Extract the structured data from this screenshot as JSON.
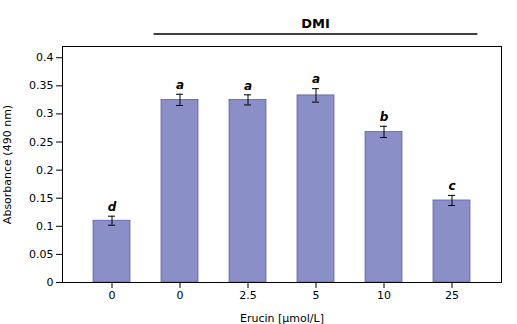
{
  "chart_data": {
    "type": "bar",
    "categories": [
      "0",
      "0",
      "2.5",
      "5",
      "10",
      "25"
    ],
    "values": [
      0.11,
      0.325,
      0.325,
      0.333,
      0.268,
      0.146
    ],
    "errors": [
      0.008,
      0.01,
      0.009,
      0.012,
      0.01,
      0.009
    ],
    "letters": [
      "d",
      "a",
      "a",
      "a",
      "b",
      "c"
    ],
    "color": "#8B8FC8",
    "xlabel": "Erucin [μmol/L]",
    "ylabel": "Absorbance (490 nm)",
    "ylim": [
      0,
      0.42
    ],
    "yticks": [
      0,
      0.05,
      0.1,
      0.15,
      0.2,
      0.25,
      0.3,
      0.35,
      0.4
    ],
    "annotations": [
      {
        "text": "DMI",
        "start": 1,
        "end": 5
      }
    ],
    "grid": false
  }
}
